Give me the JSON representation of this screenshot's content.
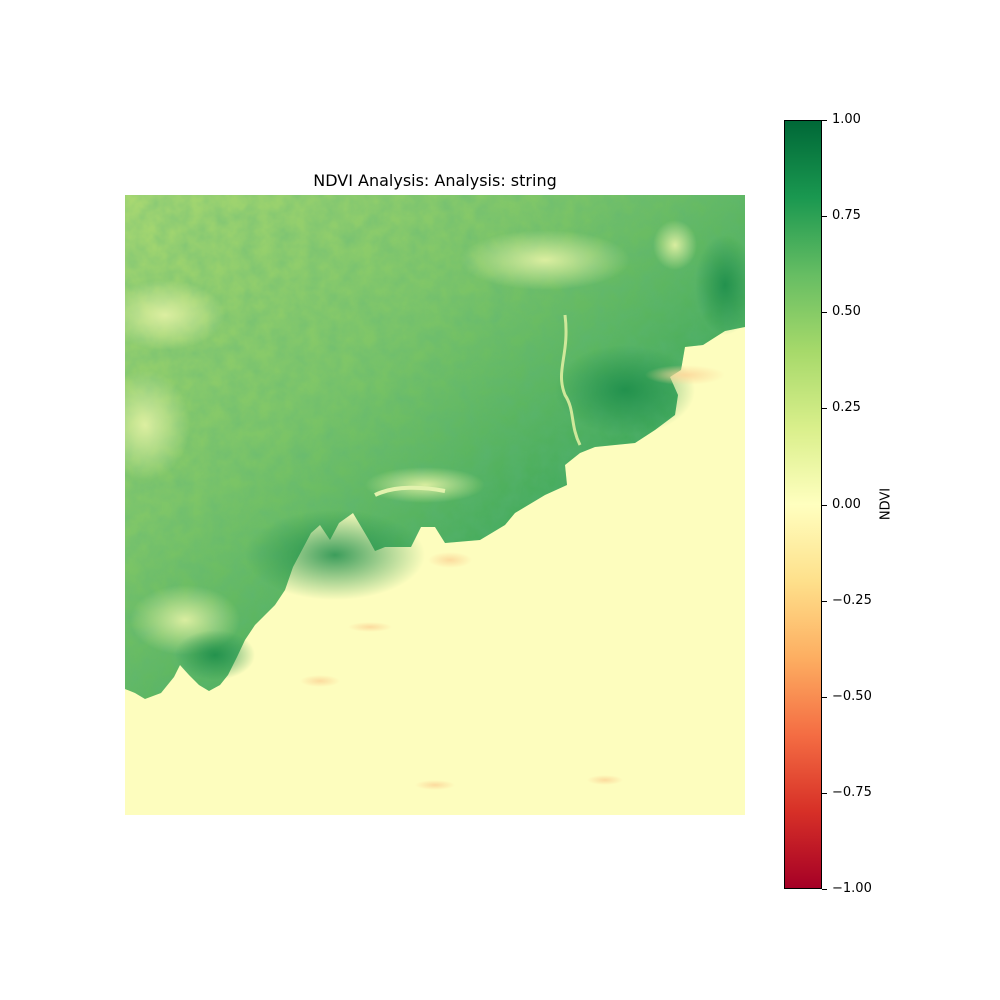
{
  "chart_data": {
    "type": "heatmap",
    "title": "NDVI Analysis: Analysis: string",
    "colorbar": {
      "label": "NDVI",
      "range": [
        -1.0,
        1.0
      ],
      "colormap": "RdYlGn",
      "ticks": [
        1.0,
        0.75,
        0.5,
        0.25,
        0.0,
        -0.25,
        -0.5,
        -0.75,
        -1.0
      ],
      "tick_labels": [
        "1.00",
        "0.75",
        "0.50",
        "0.25",
        "0.00",
        "−0.25",
        "−0.50",
        "−0.75",
        "−1.00"
      ],
      "colors": [
        "#a50026",
        "#d73027",
        "#f46d43",
        "#fdae61",
        "#fee08b",
        "#ffffbf",
        "#d9ef8b",
        "#a6d96a",
        "#66bd63",
        "#1a9850",
        "#006837"
      ]
    },
    "axes_visible": false,
    "regions": [
      {
        "name": "land (upper-left)",
        "ndvi_range": [
          0.3,
          0.85
        ]
      },
      {
        "name": "water (lower-right)",
        "ndvi_range": [
          -0.15,
          0.05
        ]
      }
    ]
  }
}
